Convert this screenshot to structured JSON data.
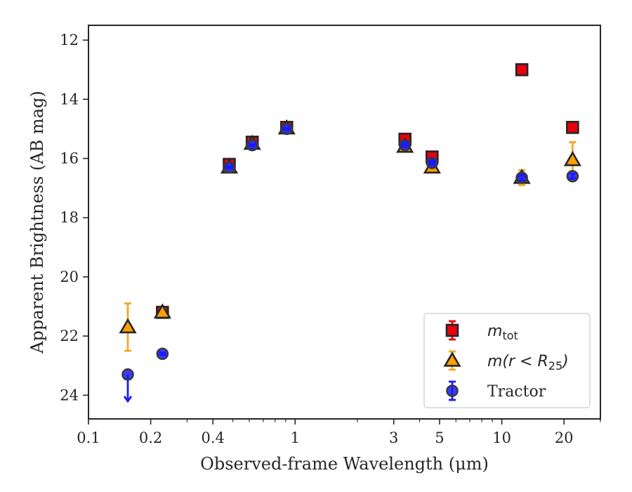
{
  "chart_data": {
    "type": "scatter",
    "xlabel": "Observed-frame Wavelength (μm)",
    "ylabel": "Apparent Brightness (AB mag)",
    "xscale": "log",
    "xlim": [
      0.1,
      30
    ],
    "ylim": [
      24.8,
      11.5
    ],
    "y_inverted": true,
    "x_ticks": [
      {
        "value": 0.1,
        "label": "0.1"
      },
      {
        "value": 0.2,
        "label": "0.2"
      },
      {
        "value": 0.4,
        "label": "0.4"
      },
      {
        "value": 1,
        "label": "1"
      },
      {
        "value": 3,
        "label": "3"
      },
      {
        "value": 5,
        "label": "5"
      },
      {
        "value": 10,
        "label": "10"
      },
      {
        "value": 20,
        "label": "20"
      }
    ],
    "x_minor_ticks": [
      0.3,
      0.5,
      0.6,
      0.7,
      0.8,
      0.9,
      2,
      4,
      6,
      7,
      8,
      9,
      30
    ],
    "y_ticks": [
      12,
      14,
      16,
      18,
      20,
      22,
      24
    ],
    "grid": false,
    "legend_position": "bottom-right",
    "series": [
      {
        "name": "m_tot",
        "legend": {
          "base": "m",
          "sub": "tot"
        },
        "marker": "square",
        "face": "#e8000b",
        "edge": "#262626",
        "errcolor": "#e8000b",
        "points": [
          {
            "x": 0.228,
            "y": 21.2,
            "err": 0.08
          },
          {
            "x": 0.48,
            "y": 16.2,
            "err": 0.1
          },
          {
            "x": 0.62,
            "y": 15.45,
            "err": 0.1
          },
          {
            "x": 0.91,
            "y": 14.95,
            "err": 0.06
          },
          {
            "x": 3.4,
            "y": 15.35,
            "err": 0.07
          },
          {
            "x": 4.6,
            "y": 15.95,
            "err": 0.1
          },
          {
            "x": 12.5,
            "y": 13.0,
            "err": 0.0
          },
          {
            "x": 22.0,
            "y": 14.95,
            "err": 0.0
          }
        ]
      },
      {
        "name": "m(r < R_25)",
        "legend": {
          "base": "m(r < R",
          "sub": "25",
          "tail": ")"
        },
        "marker": "triangle",
        "face": "#ff9f00",
        "edge": "#262626",
        "errcolor": "#f5a623",
        "points": [
          {
            "x": 0.155,
            "y": 21.7,
            "err": 0.8
          },
          {
            "x": 0.228,
            "y": 21.2,
            "err": 0.1
          },
          {
            "x": 0.48,
            "y": 16.3,
            "err": 0.05
          },
          {
            "x": 0.62,
            "y": 15.5,
            "err": 0.05
          },
          {
            "x": 0.91,
            "y": 14.98,
            "err": 0.04
          },
          {
            "x": 3.4,
            "y": 15.6,
            "err": 0.05
          },
          {
            "x": 4.6,
            "y": 16.3,
            "err": 0.08
          },
          {
            "x": 12.5,
            "y": 16.65,
            "err": 0.25
          },
          {
            "x": 22.0,
            "y": 16.05,
            "err": 0.6
          }
        ]
      },
      {
        "name": "Tractor",
        "legend": {
          "base": "Tractor"
        },
        "marker": "circle",
        "face": "#1a1aff",
        "edge": "#3a3a3a",
        "errcolor": "#1a1aff",
        "points": [
          {
            "x": 0.155,
            "y": 23.3,
            "err": 0.0,
            "upper_limit": true
          },
          {
            "x": 0.228,
            "y": 22.6,
            "err": 0.04
          },
          {
            "x": 0.48,
            "y": 16.3,
            "err": 0.03
          },
          {
            "x": 0.62,
            "y": 15.55,
            "err": 0.03
          },
          {
            "x": 0.91,
            "y": 15.0,
            "err": 0.03
          },
          {
            "x": 3.4,
            "y": 15.55,
            "err": 0.05
          },
          {
            "x": 4.6,
            "y": 16.15,
            "err": 0.07
          },
          {
            "x": 12.5,
            "y": 16.65,
            "err": 0.1
          },
          {
            "x": 22.0,
            "y": 16.6,
            "err": 0.08
          }
        ]
      }
    ]
  }
}
